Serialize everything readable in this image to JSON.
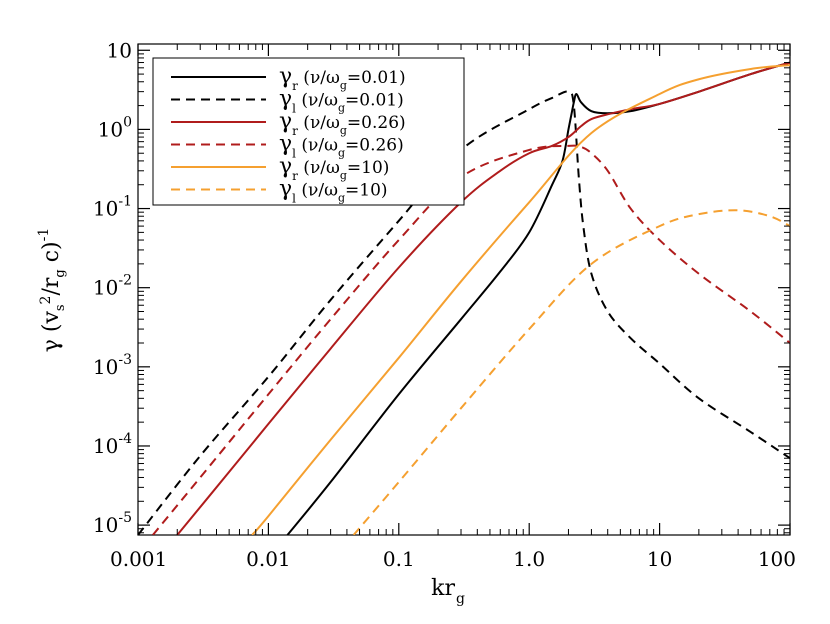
{
  "chart_data": {
    "type": "line",
    "title": "",
    "xlabel": "kr_g",
    "ylabel": "γ (v_s²/r_g c)⁻¹",
    "xscale": "log",
    "yscale": "log",
    "xlim": [
      0.001,
      100
    ],
    "ylim": [
      7.5e-06,
      12
    ],
    "x_ticks": [
      {
        "value": 0.001,
        "label": "0.001"
      },
      {
        "value": 0.01,
        "label": "0.01"
      },
      {
        "value": 0.1,
        "label": "0.1"
      },
      {
        "value": 1,
        "label": "1.0"
      },
      {
        "value": 10,
        "label": "10"
      },
      {
        "value": 100,
        "label": "100"
      }
    ],
    "y_ticks": [
      {
        "value": 1e-05,
        "base": "10",
        "exp": "-5"
      },
      {
        "value": 0.0001,
        "base": "10",
        "exp": "-4"
      },
      {
        "value": 0.001,
        "base": "10",
        "exp": "-3"
      },
      {
        "value": 0.01,
        "base": "10",
        "exp": "-2"
      },
      {
        "value": 0.1,
        "base": "10",
        "exp": "-1"
      },
      {
        "value": 1,
        "base": "10",
        "exp": "0"
      },
      {
        "value": 10,
        "base": "10",
        "exp": ""
      }
    ],
    "grid": false,
    "legend_position": "top-left",
    "series": [
      {
        "name": "γr (ν/ωg=0.01)",
        "sym": "γ",
        "sub": "r",
        "ratio": "0.01",
        "color": "#000000",
        "dash": false,
        "x": [
          0.014,
          0.03,
          0.1,
          0.3,
          0.6,
          1.0,
          1.5,
          1.8,
          2.0,
          2.1,
          2.2,
          2.3,
          2.5,
          3.0,
          4.0,
          6.0,
          10,
          20,
          50,
          100
        ],
        "y": [
          7.5e-06,
          3.5e-05,
          0.00045,
          0.004,
          0.016,
          0.05,
          0.2,
          0.4,
          1.0,
          1.5,
          2.2,
          2.8,
          2.2,
          1.7,
          1.6,
          1.7,
          2.1,
          3.0,
          5.0,
          7.0
        ]
      },
      {
        "name": "γl (ν/ωg=0.01)",
        "sym": "γ",
        "sub": "l",
        "ratio": "0.01",
        "color": "#000000",
        "dash": true,
        "x": [
          0.001,
          0.003,
          0.01,
          0.03,
          0.1,
          0.3,
          1.0,
          1.5,
          2.0,
          2.2,
          2.4,
          2.6,
          3.0,
          4.0,
          6.0,
          10,
          20,
          50,
          100
        ],
        "y": [
          7.5e-06,
          7.5e-05,
          0.00075,
          0.007,
          0.07,
          0.55,
          1.8,
          2.5,
          3.0,
          2.0,
          0.25,
          0.06,
          0.015,
          0.005,
          0.0023,
          0.0011,
          0.0004,
          0.00015,
          7e-05
        ]
      },
      {
        "name": "γr (ν/ωg=0.26)",
        "sym": "γ",
        "sub": "r",
        "ratio": "0.26",
        "color": "#b01c1c",
        "dash": false,
        "x": [
          0.002,
          0.005,
          0.01,
          0.03,
          0.1,
          0.3,
          0.6,
          1.0,
          1.5,
          2.0,
          2.5,
          3.0,
          4.0,
          6.0,
          10,
          20,
          50,
          100
        ],
        "y": [
          7.5e-06,
          4.7e-05,
          0.00019,
          0.0017,
          0.018,
          0.12,
          0.3,
          0.5,
          0.62,
          0.8,
          1.1,
          1.35,
          1.55,
          1.8,
          2.1,
          3.0,
          5.0,
          7.0
        ]
      },
      {
        "name": "γl (ν/ωg=0.26)",
        "sym": "γ",
        "sub": "l",
        "ratio": "0.26",
        "color": "#b01c1c",
        "dash": true,
        "x": [
          0.0013,
          0.003,
          0.01,
          0.03,
          0.1,
          0.3,
          1.0,
          2.0,
          2.5,
          3.0,
          4.0,
          6.0,
          10,
          20,
          50,
          100
        ],
        "y": [
          7.5e-06,
          4e-05,
          0.00045,
          0.004,
          0.04,
          0.25,
          0.55,
          0.62,
          0.6,
          0.5,
          0.3,
          0.1,
          0.04,
          0.015,
          0.005,
          0.002
        ]
      },
      {
        "name": "γr (ν/ωg=10)",
        "sym": "γ",
        "sub": "r",
        "ratio": "10",
        "color": "#f5a030",
        "dash": false,
        "x": [
          0.0075,
          0.01,
          0.03,
          0.1,
          0.3,
          1.0,
          3.0,
          10,
          20,
          50,
          100
        ],
        "y": [
          7.5e-06,
          1.3e-05,
          0.00012,
          0.0013,
          0.012,
          0.12,
          0.9,
          2.8,
          4.3,
          5.8,
          6.5
        ]
      },
      {
        "name": "γl (ν/ωg=10)",
        "sym": "γ",
        "sub": "l",
        "ratio": "10",
        "color": "#f5a030",
        "dash": true,
        "x": [
          0.045,
          0.1,
          0.3,
          1.0,
          3.0,
          10,
          20,
          40,
          70,
          100
        ],
        "y": [
          7.5e-06,
          3.5e-05,
          0.0003,
          0.003,
          0.02,
          0.06,
          0.085,
          0.095,
          0.08,
          0.06
        ]
      }
    ]
  }
}
